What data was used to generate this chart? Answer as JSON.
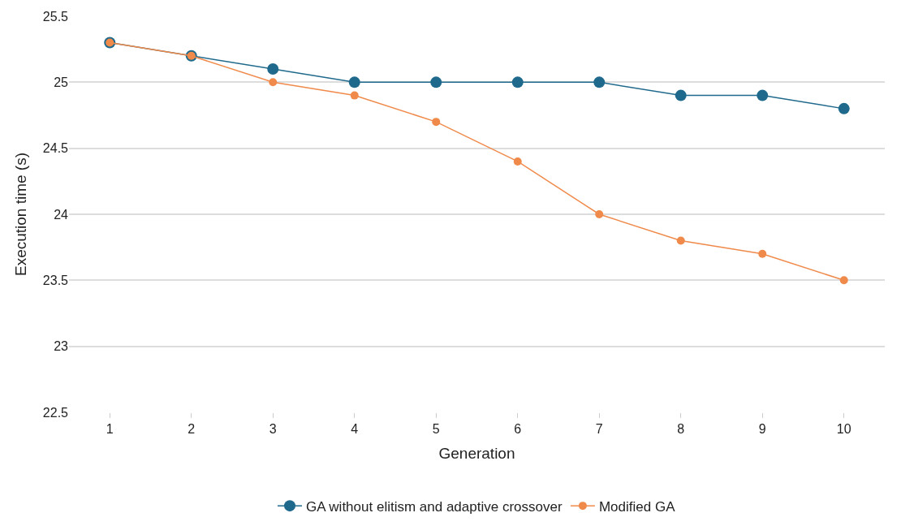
{
  "chart_data": {
    "type": "line",
    "xlabel": "Generation",
    "ylabel": "Execution time (s)",
    "categories": [
      "1",
      "2",
      "3",
      "4",
      "5",
      "6",
      "7",
      "8",
      "9",
      "10"
    ],
    "series": [
      {
        "name": "GA without elitism and adaptive crossover",
        "color": "#1f6a8c",
        "values": [
          25.3,
          25.2,
          25.1,
          25,
          25,
          25,
          25,
          24.9,
          24.9,
          24.8
        ]
      },
      {
        "name": "Modified GA",
        "color": "#f08a4b",
        "values": [
          25.3,
          25.2,
          25,
          24.9,
          24.7,
          24.4,
          24,
          23.8,
          23.7,
          23.5
        ]
      }
    ],
    "ylim": [
      22.5,
      25.5
    ],
    "yticks": [
      22.5,
      23,
      23.5,
      24,
      24.5,
      25,
      25.5
    ],
    "grid": "y",
    "legend": "bottom",
    "marker": "circle",
    "line_style": "solid"
  }
}
